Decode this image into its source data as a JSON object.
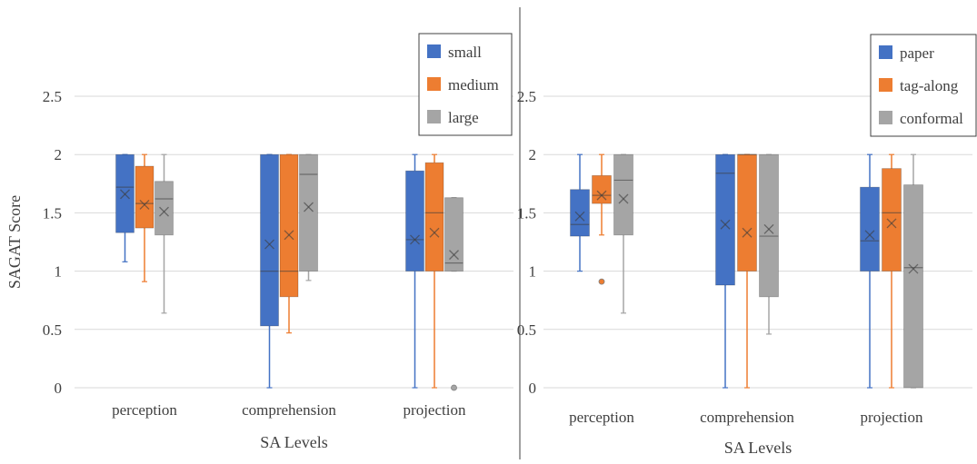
{
  "colors": {
    "blue": "#4472C4",
    "orange": "#ED7D31",
    "gray": "#A5A5A5",
    "grid": "#D9D9D9",
    "text": "#404040"
  },
  "chart_data": [
    {
      "type": "box",
      "title": "",
      "xlabel": "SA Levels",
      "ylabel": "SAGAT Score",
      "ylim": [
        0,
        2.5
      ],
      "yticks": [
        "0",
        "0.5",
        "1",
        "1.5",
        "2",
        "2.5"
      ],
      "categories": [
        "perception",
        "comprehension",
        "projection"
      ],
      "legend_position": "top-right",
      "series": [
        {
          "name": "small",
          "color": "#4472C4",
          "boxes": [
            {
              "min": 1.08,
              "q1": 1.33,
              "median": 1.72,
              "q3": 2.0,
              "max": 2.0,
              "mean": 1.66,
              "outliers": []
            },
            {
              "min": 0.0,
              "q1": 0.53,
              "median": 1.0,
              "q3": 2.0,
              "max": 2.0,
              "mean": 1.23,
              "outliers": []
            },
            {
              "min": 0.0,
              "q1": 1.0,
              "median": 1.27,
              "q3": 1.86,
              "max": 2.0,
              "mean": 1.27,
              "outliers": []
            }
          ]
        },
        {
          "name": "medium",
          "color": "#ED7D31",
          "boxes": [
            {
              "min": 0.91,
              "q1": 1.37,
              "median": 1.58,
              "q3": 1.9,
              "max": 2.0,
              "mean": 1.57,
              "outliers": []
            },
            {
              "min": 0.47,
              "q1": 0.78,
              "median": 1.0,
              "q3": 2.0,
              "max": 2.0,
              "mean": 1.31,
              "outliers": []
            },
            {
              "min": 0.0,
              "q1": 1.0,
              "median": 1.5,
              "q3": 1.93,
              "max": 2.0,
              "mean": 1.33,
              "outliers": []
            }
          ]
        },
        {
          "name": "large",
          "color": "#A5A5A5",
          "boxes": [
            {
              "min": 0.64,
              "q1": 1.31,
              "median": 1.62,
              "q3": 1.77,
              "max": 2.0,
              "mean": 1.51,
              "outliers": []
            },
            {
              "min": 0.92,
              "q1": 1.0,
              "median": 1.83,
              "q3": 2.0,
              "max": 2.0,
              "mean": 1.55,
              "outliers": []
            },
            {
              "min": 1.0,
              "q1": 1.0,
              "median": 1.07,
              "q3": 1.63,
              "max": 1.63,
              "mean": 1.14,
              "outliers": [
                0.0
              ]
            }
          ]
        }
      ]
    },
    {
      "type": "box",
      "title": "",
      "xlabel": "SA Levels",
      "ylabel": "",
      "ylim": [
        0,
        2.5
      ],
      "yticks": [
        "0",
        "0.5",
        "1",
        "1.5",
        "2",
        "2.5"
      ],
      "categories": [
        "perception",
        "comprehension",
        "projection"
      ],
      "legend_position": "top-right",
      "series": [
        {
          "name": "paper",
          "color": "#4472C4",
          "boxes": [
            {
              "min": 1.0,
              "q1": 1.3,
              "median": 1.4,
              "q3": 1.7,
              "max": 2.0,
              "mean": 1.47,
              "outliers": []
            },
            {
              "min": 0.0,
              "q1": 0.88,
              "median": 1.84,
              "q3": 2.0,
              "max": 2.0,
              "mean": 1.4,
              "outliers": []
            },
            {
              "min": 0.0,
              "q1": 1.0,
              "median": 1.26,
              "q3": 1.72,
              "max": 2.0,
              "mean": 1.31,
              "outliers": []
            }
          ]
        },
        {
          "name": "tag-along",
          "color": "#ED7D31",
          "boxes": [
            {
              "min": 1.31,
              "q1": 1.58,
              "median": 1.65,
              "q3": 1.82,
              "max": 2.0,
              "mean": 1.65,
              "outliers": [
                0.91
              ]
            },
            {
              "min": 0.0,
              "q1": 1.0,
              "median": 2.0,
              "q3": 2.0,
              "max": 2.0,
              "mean": 1.33,
              "outliers": []
            },
            {
              "min": 0.0,
              "q1": 1.0,
              "median": 1.5,
              "q3": 1.88,
              "max": 2.0,
              "mean": 1.41,
              "outliers": []
            }
          ]
        },
        {
          "name": "conformal",
          "color": "#A5A5A5",
          "boxes": [
            {
              "min": 0.64,
              "q1": 1.31,
              "median": 1.78,
              "q3": 2.0,
              "max": 2.0,
              "mean": 1.62,
              "outliers": []
            },
            {
              "min": 0.46,
              "q1": 0.78,
              "median": 1.3,
              "q3": 2.0,
              "max": 2.0,
              "mean": 1.36,
              "outliers": []
            },
            {
              "min": 0.0,
              "q1": 0.0,
              "median": 1.03,
              "q3": 1.74,
              "max": 2.0,
              "mean": 1.02,
              "outliers": []
            }
          ]
        }
      ]
    }
  ]
}
